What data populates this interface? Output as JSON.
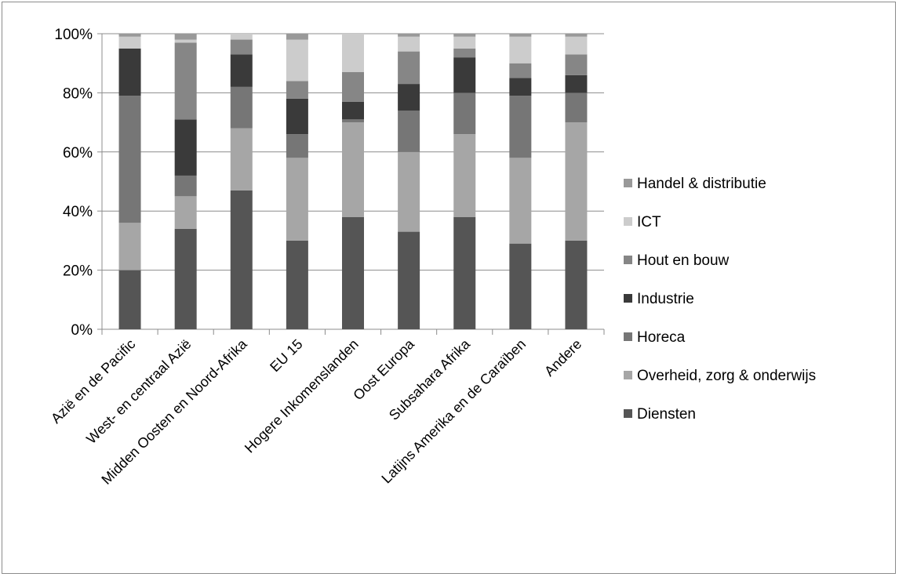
{
  "chart_data": {
    "type": "bar",
    "stacked": true,
    "percent": true,
    "categories": [
      "Azië en de Pacific",
      "West- en centraal Azië",
      "Midden Oosten en Noord-Afrika",
      "EU 15",
      "Hogere Inkomenslanden",
      "Oost Europa",
      "Subsahara Afrika",
      "Latijns Amerika en de Caraïben",
      "Andere"
    ],
    "series": [
      {
        "name": "Diensten",
        "color": "#555555",
        "values": [
          20,
          34,
          47,
          30,
          38,
          33,
          38,
          29,
          30
        ]
      },
      {
        "name": "Overheid, zorg & onderwijs",
        "color": "#a6a6a6",
        "values": [
          16,
          11,
          21,
          28,
          32,
          27,
          28,
          29,
          40
        ]
      },
      {
        "name": "Horeca",
        "color": "#767676",
        "values": [
          43,
          7,
          14,
          8,
          1,
          14,
          14,
          21,
          10
        ]
      },
      {
        "name": "Industrie",
        "color": "#3a3a3a",
        "values": [
          16,
          19,
          11,
          12,
          6,
          9,
          12,
          6,
          6
        ]
      },
      {
        "name": "Hout en bouw",
        "color": "#868686",
        "values": [
          0,
          26,
          5,
          6,
          10,
          11,
          3,
          5,
          7
        ]
      },
      {
        "name": "ICT",
        "color": "#cccccc",
        "values": [
          4,
          1,
          2,
          14,
          13,
          5,
          4,
          9,
          6
        ]
      },
      {
        "name": "Handel & distributie",
        "color": "#999999",
        "values": [
          1,
          2,
          0,
          2,
          0,
          1,
          1,
          1,
          1
        ]
      }
    ],
    "yticks": [
      "0%",
      "20%",
      "40%",
      "60%",
      "80%",
      "100%"
    ],
    "ylim": [
      0,
      100
    ],
    "grid": true,
    "legend_position": "right",
    "legend_order": [
      "Handel & distributie",
      "ICT",
      "Hout en bouw",
      "Industrie",
      "Horeca",
      "Overheid, zorg & onderwijs",
      "Diensten"
    ]
  }
}
